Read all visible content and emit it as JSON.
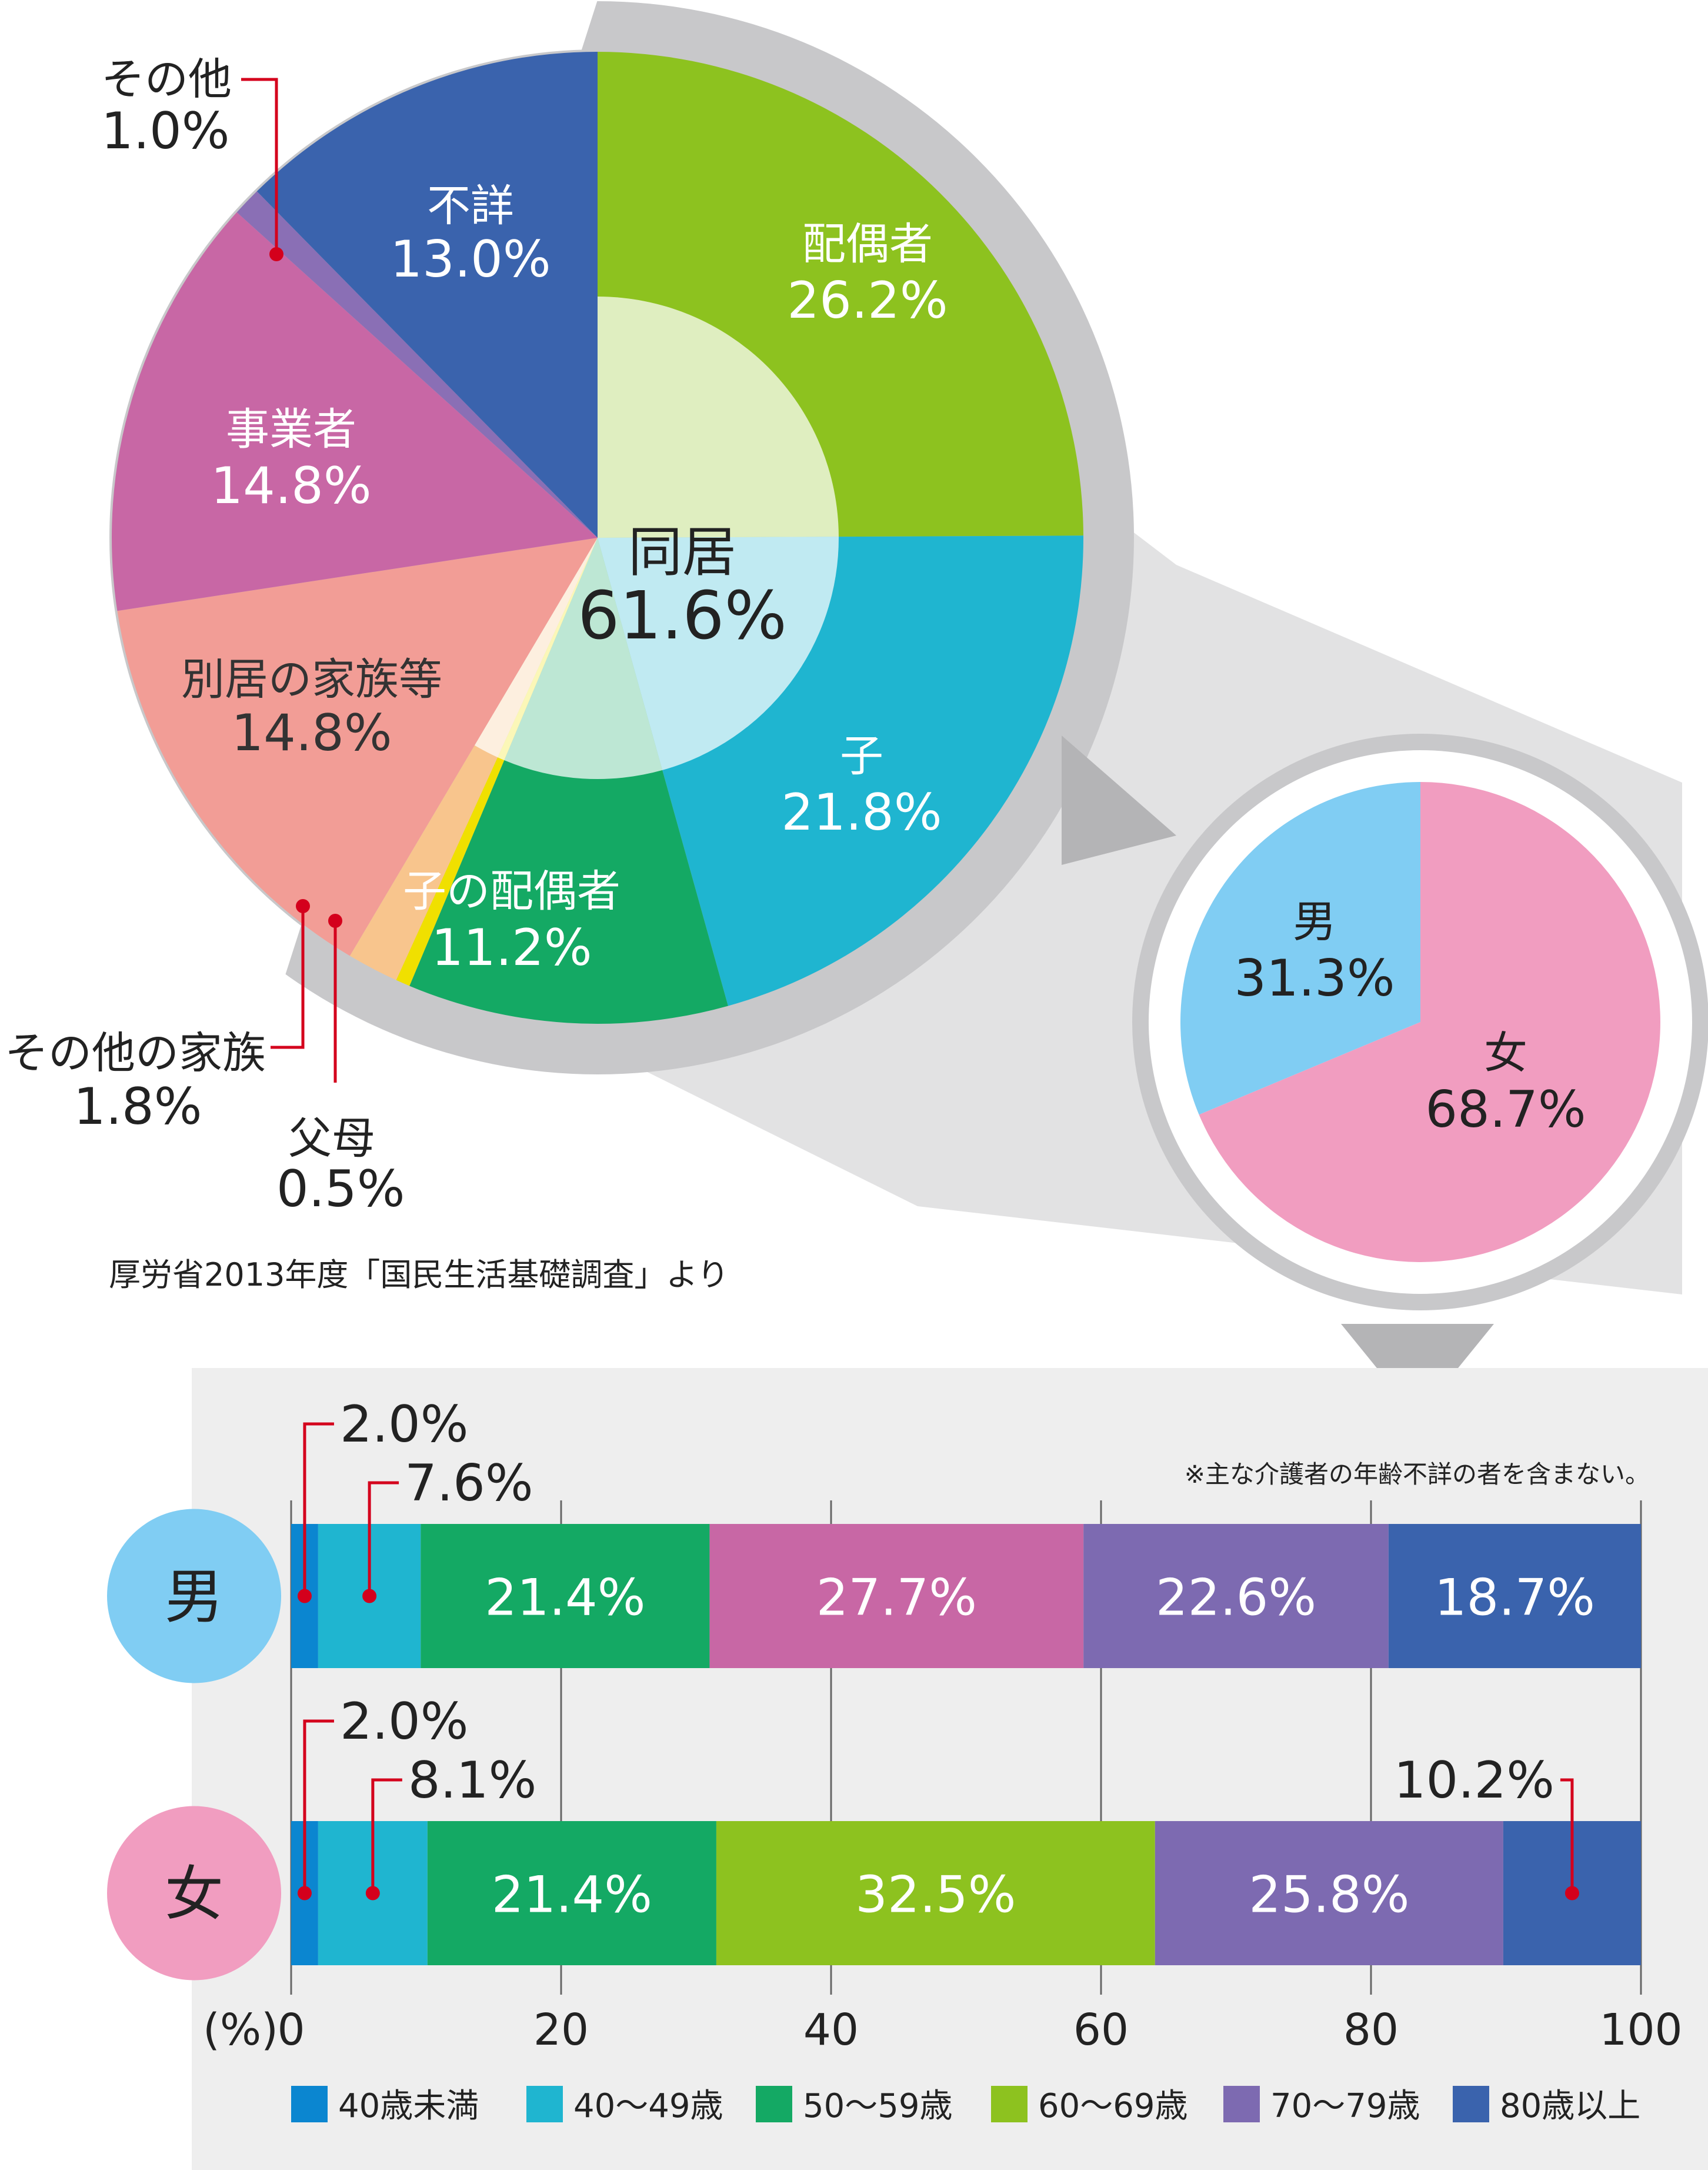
{
  "source_note": "厚労省2013年度「国民生活基礎調査」より",
  "chart_data": [
    {
      "type": "pie",
      "slices": [
        {
          "label": "配偶者",
          "value": 26.2,
          "display": "26.2%",
          "color": "#8dc21f"
        },
        {
          "label": "子",
          "value": 21.8,
          "display": "21.8%",
          "color": "#1fb5d0"
        },
        {
          "label": "子の配偶者",
          "value": 11.2,
          "display": "11.2%",
          "color": "#14a964"
        },
        {
          "label": "父母",
          "value": 0.5,
          "display": "0.5%",
          "color": "#f0e000"
        },
        {
          "label": "その他の家族",
          "value": 1.8,
          "display": "1.8%",
          "color": "#f8c58d"
        },
        {
          "label": "別居の家族等",
          "value": 14.8,
          "display": "14.8%",
          "color": "#f29d96"
        },
        {
          "label": "事業者",
          "value": 14.8,
          "display": "14.8%",
          "color": "#c867a5"
        },
        {
          "label": "その他",
          "value": 1.0,
          "display": "1.0%",
          "color": "#8a6fb5"
        },
        {
          "label": "不詳",
          "value": 13.0,
          "display": "13.0%",
          "color": "#3a63ad"
        }
      ],
      "center_label": {
        "label": "同居",
        "value": 61.6,
        "display": "61.6%"
      }
    },
    {
      "type": "pie",
      "slices": [
        {
          "label": "女",
          "value": 68.7,
          "display": "68.7%",
          "color": "#f19dc0"
        },
        {
          "label": "男",
          "value": 31.3,
          "display": "31.3%",
          "color": "#80cdf3"
        }
      ]
    },
    {
      "type": "bar",
      "orientation": "horizontal",
      "stacked": true,
      "note": "※主な介護者の年齢不詳の者を含まない。",
      "axis_unit": "(%)",
      "xlim": [
        0,
        100
      ],
      "xticks": [
        0,
        20,
        40,
        60,
        80,
        100
      ],
      "categories": [
        "男",
        "女"
      ],
      "category_colors": [
        "#80cdf3",
        "#f19dc0"
      ],
      "series": [
        {
          "name": "40歳未満",
          "color": "#0b86d0",
          "values": [
            2.0,
            2.0
          ],
          "displays": [
            "2.0%",
            "2.0%"
          ]
        },
        {
          "name": "40〜49歳",
          "color": "#1fb5d0",
          "values": [
            7.6,
            8.1
          ],
          "displays": [
            "7.6%",
            "8.1%"
          ]
        },
        {
          "name": "50〜59歳",
          "color": "#14a964",
          "values": [
            21.4,
            21.4
          ],
          "displays": [
            "21.4%",
            "21.4%"
          ]
        },
        {
          "name": "60〜69歳",
          "color": "#8dc21f",
          "values": [
            0,
            32.5
          ],
          "displays": [
            "",
            "32.5%"
          ]
        },
        {
          "name": "70〜79歳",
          "color": "#7d6ab1",
          "values": [
            22.6,
            25.8
          ],
          "displays": [
            "22.6%",
            "25.8%"
          ]
        },
        {
          "name": "80歳以上",
          "color": "#3a63ad",
          "values": [
            18.7,
            10.2
          ],
          "displays": [
            "18.7%",
            "10.2%"
          ]
        }
      ],
      "extra_segment": {
        "row": 0,
        "after_series": 2,
        "value": 27.7,
        "display": "27.7%",
        "color": "#c867a5"
      }
    }
  ]
}
